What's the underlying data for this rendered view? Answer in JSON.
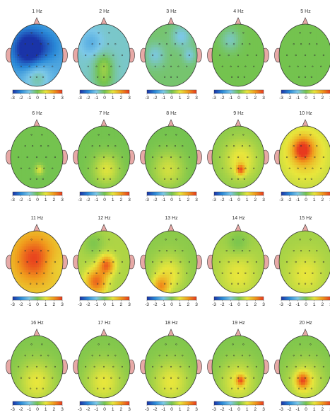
{
  "colorbar": {
    "ticks": [
      "-3",
      "-2",
      "-1",
      "0",
      "1",
      "2",
      "3"
    ]
  },
  "palette": {
    "stops": [
      "#1a34a8",
      "#2a8ad8",
      "#7cc8e8",
      "#74c34f",
      "#e8e63c",
      "#f09a1c",
      "#e83a1e"
    ],
    "head_outline": "#333333",
    "ear_nose": "#e7a9a6",
    "electrode": "#333333"
  },
  "maps": [
    {
      "label": "1 Hz",
      "base": -1.5,
      "blobs": [
        [
          0.35,
          0.4,
          0.3,
          -2.2
        ],
        [
          0.75,
          0.35,
          0.25,
          -0.5
        ],
        [
          0.5,
          0.85,
          0.25,
          1.0
        ]
      ]
    },
    {
      "label": "2 Hz",
      "base": -0.8,
      "blobs": [
        [
          0.5,
          0.65,
          0.18,
          0.9
        ],
        [
          0.25,
          0.3,
          0.2,
          -0.6
        ],
        [
          0.5,
          0.9,
          0.2,
          0.8
        ]
      ]
    },
    {
      "label": "3 Hz",
      "base": -0.2,
      "blobs": [
        [
          0.7,
          0.2,
          0.18,
          -0.8
        ],
        [
          0.2,
          0.5,
          0.18,
          -0.7
        ],
        [
          0.85,
          0.5,
          0.12,
          -0.7
        ]
      ]
    },
    {
      "label": "4 Hz",
      "base": 0.0,
      "blobs": [
        [
          0.35,
          0.25,
          0.18,
          -0.7
        ]
      ]
    },
    {
      "label": "5 Hz",
      "base": 0.0,
      "blobs": []
    },
    {
      "label": "6 Hz",
      "base": 0.0,
      "blobs": [
        [
          0.55,
          0.7,
          0.08,
          0.9
        ]
      ]
    },
    {
      "label": "7 Hz",
      "base": 0.0,
      "blobs": [
        [
          0.55,
          0.7,
          0.25,
          0.9
        ]
      ]
    },
    {
      "label": "8 Hz",
      "base": 0.0,
      "blobs": [
        [
          0.45,
          0.7,
          0.3,
          0.8
        ]
      ]
    },
    {
      "label": "9 Hz",
      "base": 0.2,
      "blobs": [
        [
          0.55,
          0.55,
          0.32,
          0.9
        ],
        [
          0.55,
          0.7,
          0.08,
          1.9
        ]
      ]
    },
    {
      "label": "10 Hz",
      "base": 0.6,
      "blobs": [
        [
          0.5,
          0.45,
          0.4,
          0.9
        ],
        [
          0.45,
          0.38,
          0.18,
          2.0
        ]
      ]
    },
    {
      "label": "11 Hz",
      "base": 1.3,
      "blobs": [
        [
          0.45,
          0.45,
          0.35,
          1.6
        ],
        [
          0.8,
          0.55,
          0.2,
          -0.3
        ]
      ]
    },
    {
      "label": "12 Hz",
      "base": 0.5,
      "blobs": [
        [
          0.55,
          0.55,
          0.15,
          2.0
        ],
        [
          0.35,
          0.82,
          0.2,
          2.0
        ],
        [
          0.3,
          0.2,
          0.2,
          -0.4
        ]
      ]
    },
    {
      "label": "13 Hz",
      "base": 0.2,
      "blobs": [
        [
          0.45,
          0.7,
          0.3,
          0.9
        ],
        [
          0.3,
          0.9,
          0.15,
          1.5
        ]
      ]
    },
    {
      "label": "14 Hz",
      "base": 0.4,
      "blobs": [
        [
          0.5,
          0.7,
          0.35,
          0.6
        ],
        [
          0.5,
          0.2,
          0.2,
          -0.4
        ]
      ]
    },
    {
      "label": "15 Hz",
      "base": 0.4,
      "blobs": [
        [
          0.5,
          0.7,
          0.35,
          0.6
        ]
      ]
    },
    {
      "label": "16 Hz",
      "base": 0.1,
      "blobs": [
        [
          0.5,
          0.75,
          0.35,
          0.9
        ]
      ]
    },
    {
      "label": "17 Hz",
      "base": 0.1,
      "blobs": [
        [
          0.5,
          0.75,
          0.35,
          0.9
        ]
      ]
    },
    {
      "label": "18 Hz",
      "base": 0.1,
      "blobs": [
        [
          0.5,
          0.75,
          0.35,
          0.9
        ]
      ]
    },
    {
      "label": "19 Hz",
      "base": 0.1,
      "blobs": [
        [
          0.5,
          0.75,
          0.35,
          0.9
        ],
        [
          0.55,
          0.72,
          0.08,
          1.8
        ]
      ]
    },
    {
      "label": "20 Hz",
      "base": 0.1,
      "blobs": [
        [
          0.5,
          0.75,
          0.35,
          0.9
        ],
        [
          0.45,
          0.72,
          0.12,
          1.9
        ]
      ]
    }
  ]
}
